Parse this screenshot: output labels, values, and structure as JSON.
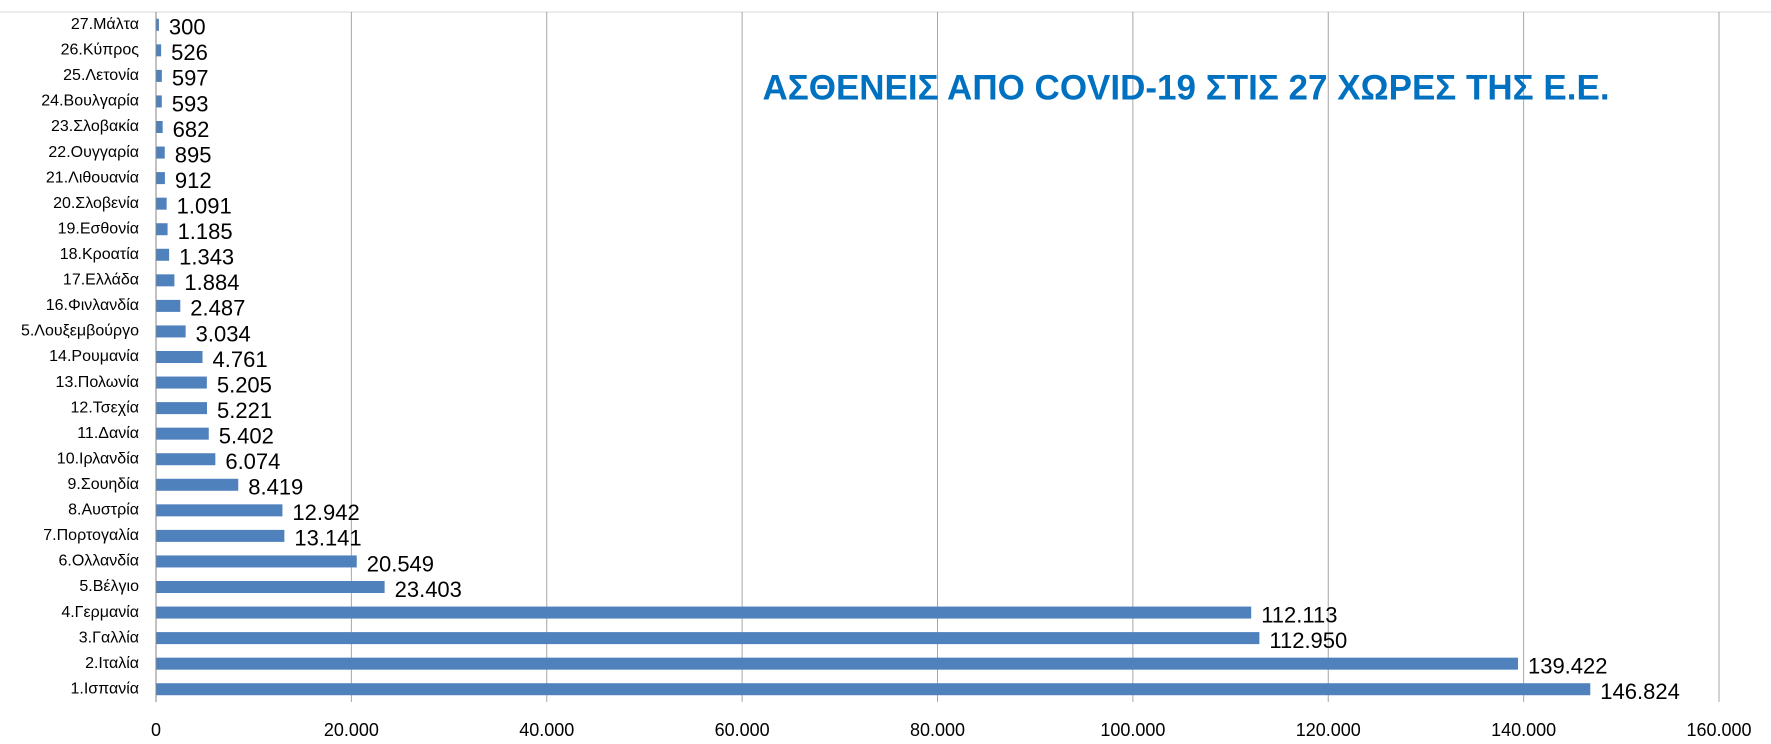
{
  "chart_data": {
    "type": "hbar",
    "title": "ΑΣΘΕΝΕΙΣ ΑΠΟ COVID-19 ΣΤΙΣ 27 ΧΩΡΕΣ ΤΗΣ Ε.Ε.",
    "categories": [
      "1.Ισπανία",
      "2.Ιταλία",
      "3.Γαλλία",
      "4.Γερμανία",
      "5.Βέλγιο",
      "6.Ολλανδία",
      "7.Πορτογαλία",
      "8.Αυστρία",
      "9.Σουηδία",
      "10.Ιρλανδία",
      "11.Δανία",
      "12.Τσεχία",
      "13.Πολωνία",
      "14.Ρουμανία",
      "5.Λουξεμβούργο",
      "16.Φινλανδία",
      "17.Ελλάδα",
      "18.Κροατία",
      "19.Εσθονία",
      "20.Σλοβενία",
      "21.Λιθουανία",
      "22.Ουγγαρία",
      "23.Σλοβακία",
      "24.Βουλγαρία",
      "25.Λετονία",
      "26.Κύπρος",
      "27.Μάλτα"
    ],
    "values": [
      146824,
      139422,
      112950,
      112113,
      23403,
      20549,
      13141,
      12942,
      8419,
      6074,
      5402,
      5221,
      5205,
      4761,
      3034,
      2487,
      1884,
      1343,
      1185,
      1091,
      912,
      895,
      682,
      593,
      597,
      526,
      300
    ],
    "value_labels": [
      "146.824",
      "139.422",
      "112.950",
      "112.113",
      "23.403",
      "20.549",
      "13.141",
      "12.942",
      "8.419",
      "6.074",
      "5.402",
      "5.221",
      "5.205",
      "4.761",
      "3.034",
      "2.487",
      "1.884",
      "1.343",
      "1.185",
      "1.091",
      "912",
      "895",
      "682",
      "593",
      "597",
      "526",
      "300"
    ],
    "color": "#4f81bd",
    "xlim": [
      0,
      160000
    ],
    "xticks": [
      0,
      {
        "value": 20000,
        "label": "20.000"
      },
      {
        "value": 40000,
        "label": "40.000"
      },
      {
        "value": 60000,
        "label": "60.000"
      },
      {
        "value": 80000,
        "label": "80.000"
      },
      {
        "value": 100000,
        "label": "100.000"
      },
      {
        "value": 120000,
        "label": "120.000"
      },
      {
        "value": 140000,
        "label": "140.000"
      },
      {
        "value": 160000,
        "label": "160.000"
      }
    ],
    "grid": true
  }
}
